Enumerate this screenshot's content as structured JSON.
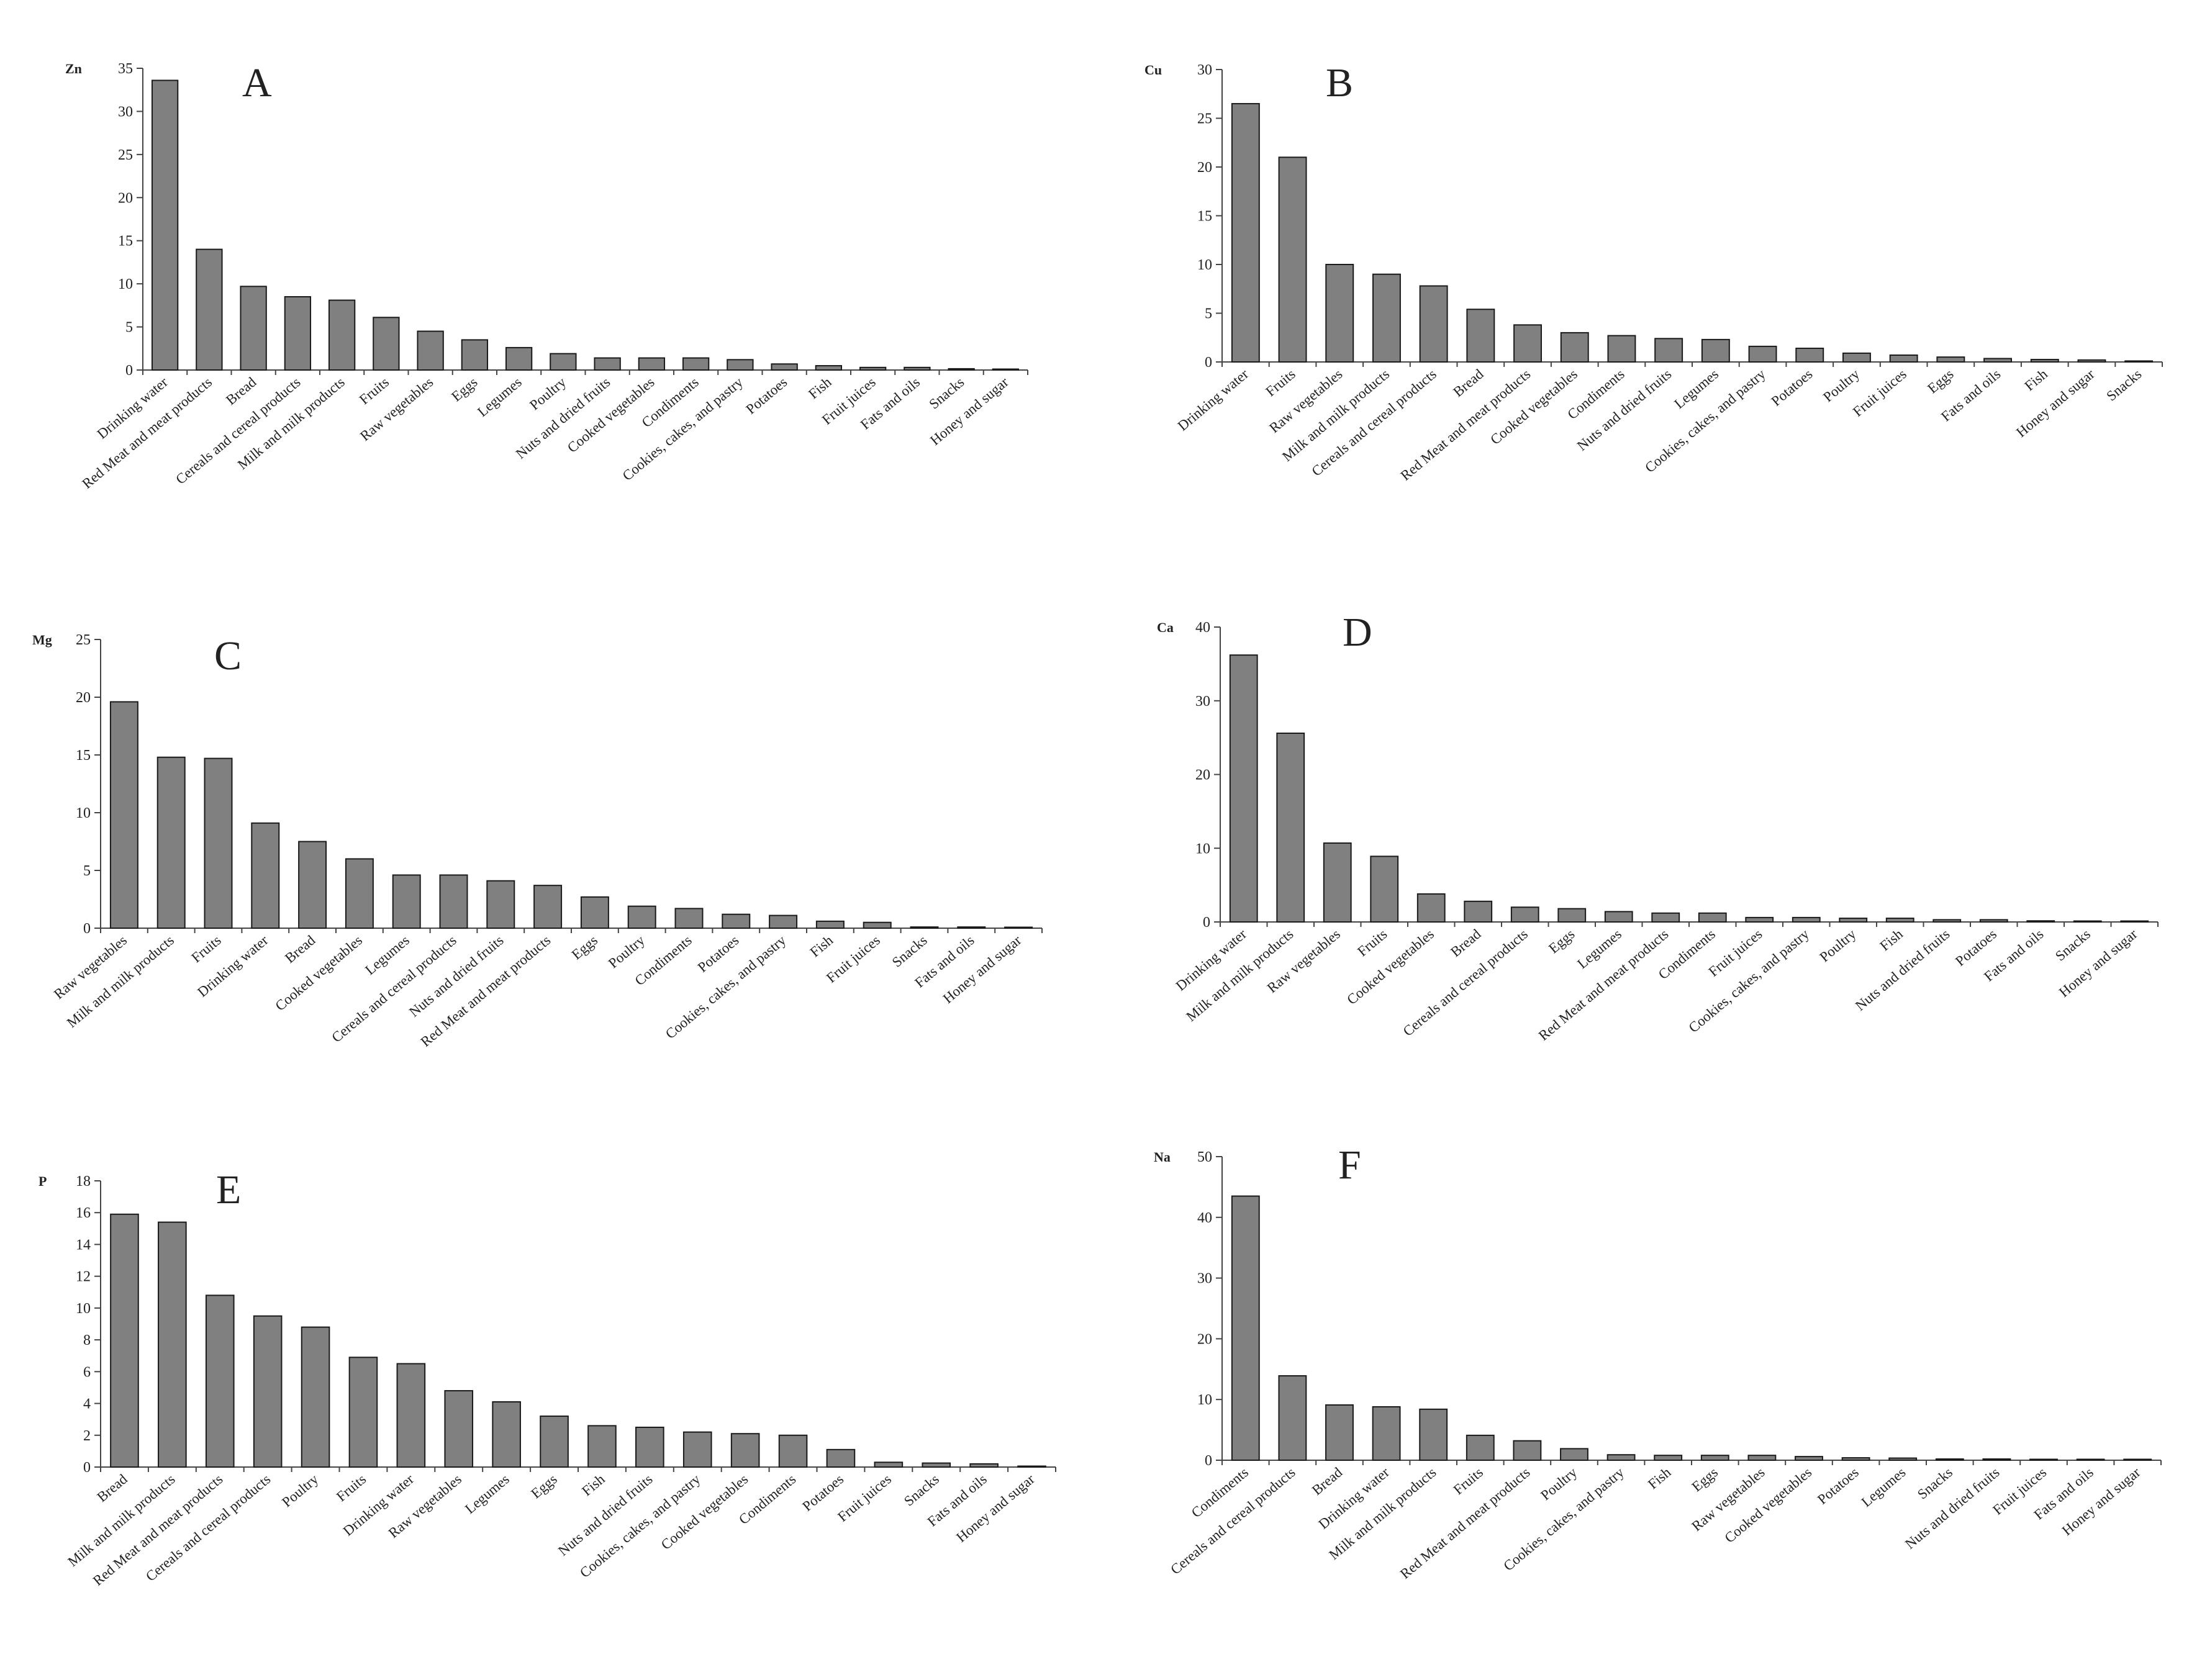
{
  "figure": {
    "background": "#ffffff",
    "bar_fill": "#808080",
    "bar_stroke": "#1a1a1a",
    "axis_color": "#444444"
  },
  "chart_data": [
    {
      "id": "A",
      "type": "bar",
      "panel_label": "A",
      "ylabel": "Zn",
      "ylim": [
        0,
        35
      ],
      "yticks": [
        0,
        5,
        10,
        15,
        20,
        25,
        30,
        35
      ],
      "categories": [
        "Drinking water",
        "Red Meat and meat products",
        "Bread",
        "Cereals and cereal products",
        "Milk and milk products",
        "Fruits",
        "Raw vegetables",
        "Eggs",
        "Legumes",
        "Poultry",
        "Nuts and dried fruits",
        "Cooked vegetables",
        "Condiments",
        "Cookies, cakes, and pastry",
        "Potatoes",
        "Fish",
        "Fruit juices",
        "Fats and oils",
        "Snacks",
        "Honey and sugar"
      ],
      "values": [
        33.6,
        14.0,
        9.7,
        8.5,
        8.1,
        6.1,
        4.5,
        3.5,
        2.6,
        1.9,
        1.4,
        1.4,
        1.4,
        1.2,
        0.7,
        0.5,
        0.3,
        0.3,
        0.15,
        0.1
      ]
    },
    {
      "id": "B",
      "type": "bar",
      "panel_label": "B",
      "ylabel": "Cu",
      "ylim": [
        0,
        30
      ],
      "yticks": [
        0,
        5,
        10,
        15,
        20,
        25,
        30
      ],
      "categories": [
        "Drinking water",
        "Fruits",
        "Raw vegetables",
        "Milk and milk products",
        "Cereals and cereal products",
        "Bread",
        "Red Meat and meat products",
        "Cooked vegetables",
        "Condiments",
        "Nuts and dried fruits",
        "Legumes",
        "Cookies, cakes, and pastry",
        "Potatoes",
        "Poultry",
        "Fruit juices",
        "Eggs",
        "Fats and oils",
        "Fish",
        "Honey and sugar",
        "Snacks"
      ],
      "values": [
        26.5,
        21.0,
        10.0,
        9.0,
        7.8,
        5.4,
        3.8,
        3.0,
        2.7,
        2.4,
        2.3,
        1.6,
        1.4,
        0.9,
        0.7,
        0.5,
        0.35,
        0.25,
        0.2,
        0.1
      ]
    },
    {
      "id": "C",
      "type": "bar",
      "panel_label": "C",
      "ylabel": "Mg",
      "ylim": [
        0,
        25
      ],
      "yticks": [
        0,
        5,
        10,
        15,
        20,
        25
      ],
      "categories": [
        "Raw vegetables",
        "Milk and milk products",
        "Fruits",
        "Drinking water",
        "Bread",
        "Cooked vegetables",
        "Legumes",
        "Cereals and cereal products",
        "Nuts and dried fruits",
        "Red Meat and meat products",
        "Eggs",
        "Poultry",
        "Condiments",
        "Potatoes",
        "Cookies, cakes, and pastry",
        "Fish",
        "Fruit juices",
        "Snacks",
        "Fats and oils",
        "Honey and sugar"
      ],
      "values": [
        19.6,
        14.8,
        14.7,
        9.1,
        7.5,
        6.0,
        4.6,
        4.6,
        4.1,
        3.7,
        2.7,
        1.9,
        1.7,
        1.2,
        1.1,
        0.6,
        0.5,
        0.1,
        0.1,
        0.05
      ]
    },
    {
      "id": "D",
      "type": "bar",
      "panel_label": "D",
      "ylabel": "Ca",
      "ylim": [
        0,
        40
      ],
      "yticks": [
        0,
        10,
        20,
        30,
        40
      ],
      "categories": [
        "Drinking water",
        "Milk and milk products",
        "Raw vegetables",
        "Fruits",
        "Cooked vegetables",
        "Bread",
        "Cereals and cereal products",
        "Eggs",
        "Legumes",
        "Red Meat and meat products",
        "Condiments",
        "Fruit juices",
        "Cookies, cakes, and pastry",
        "Poultry",
        "Fish",
        "Nuts and dried fruits",
        "Potatoes",
        "Fats and oils",
        "Snacks",
        "Honey and sugar"
      ],
      "values": [
        36.2,
        25.6,
        10.7,
        8.9,
        3.8,
        2.8,
        2.0,
        1.8,
        1.4,
        1.2,
        1.2,
        0.6,
        0.6,
        0.5,
        0.5,
        0.3,
        0.3,
        0.15,
        0.1,
        0.05
      ]
    },
    {
      "id": "E",
      "type": "bar",
      "panel_label": "E",
      "ylabel": "P",
      "ylim": [
        0,
        18
      ],
      "yticks": [
        0,
        2,
        4,
        6,
        8,
        10,
        12,
        14,
        16,
        18
      ],
      "categories": [
        "Bread",
        "Milk and milk products",
        "Red Meat and meat products",
        "Cereals and cereal products",
        "Poultry",
        "Fruits",
        "Drinking water",
        "Raw vegetables",
        "Legumes",
        "Eggs",
        "Fish",
        "Nuts and dried fruits",
        "Cookies, cakes, and pastry",
        "Cooked vegetables",
        "Condiments",
        "Potatoes",
        "Fruit juices",
        "Snacks",
        "Fats and oils",
        "Honey and sugar"
      ],
      "values": [
        15.9,
        15.4,
        10.8,
        9.5,
        8.8,
        6.9,
        6.5,
        4.8,
        4.1,
        3.2,
        2.6,
        2.5,
        2.2,
        2.1,
        2.0,
        1.1,
        0.3,
        0.25,
        0.2,
        0.05
      ]
    },
    {
      "id": "F",
      "type": "bar",
      "panel_label": "F",
      "ylabel": "Na",
      "ylim": [
        0,
        50
      ],
      "yticks": [
        0,
        10,
        20,
        30,
        40,
        50
      ],
      "categories": [
        "Condiments",
        "Cereals and cereal products",
        "Bread",
        "Drinking water",
        "Milk and milk products",
        "Fruits",
        "Red Meat and meat products",
        "Poultry",
        "Cookies, cakes, and pastry",
        "Fish",
        "Eggs",
        "Raw vegetables",
        "Cooked vegetables",
        "Potatoes",
        "Legumes",
        "Snacks",
        "Nuts and dried fruits",
        "Fruit juices",
        "Fats and oils",
        "Honey and sugar"
      ],
      "values": [
        43.5,
        13.9,
        9.1,
        8.8,
        8.4,
        4.1,
        3.2,
        1.9,
        0.9,
        0.8,
        0.8,
        0.8,
        0.6,
        0.4,
        0.35,
        0.2,
        0.2,
        0.15,
        0.1,
        0.05
      ]
    }
  ]
}
